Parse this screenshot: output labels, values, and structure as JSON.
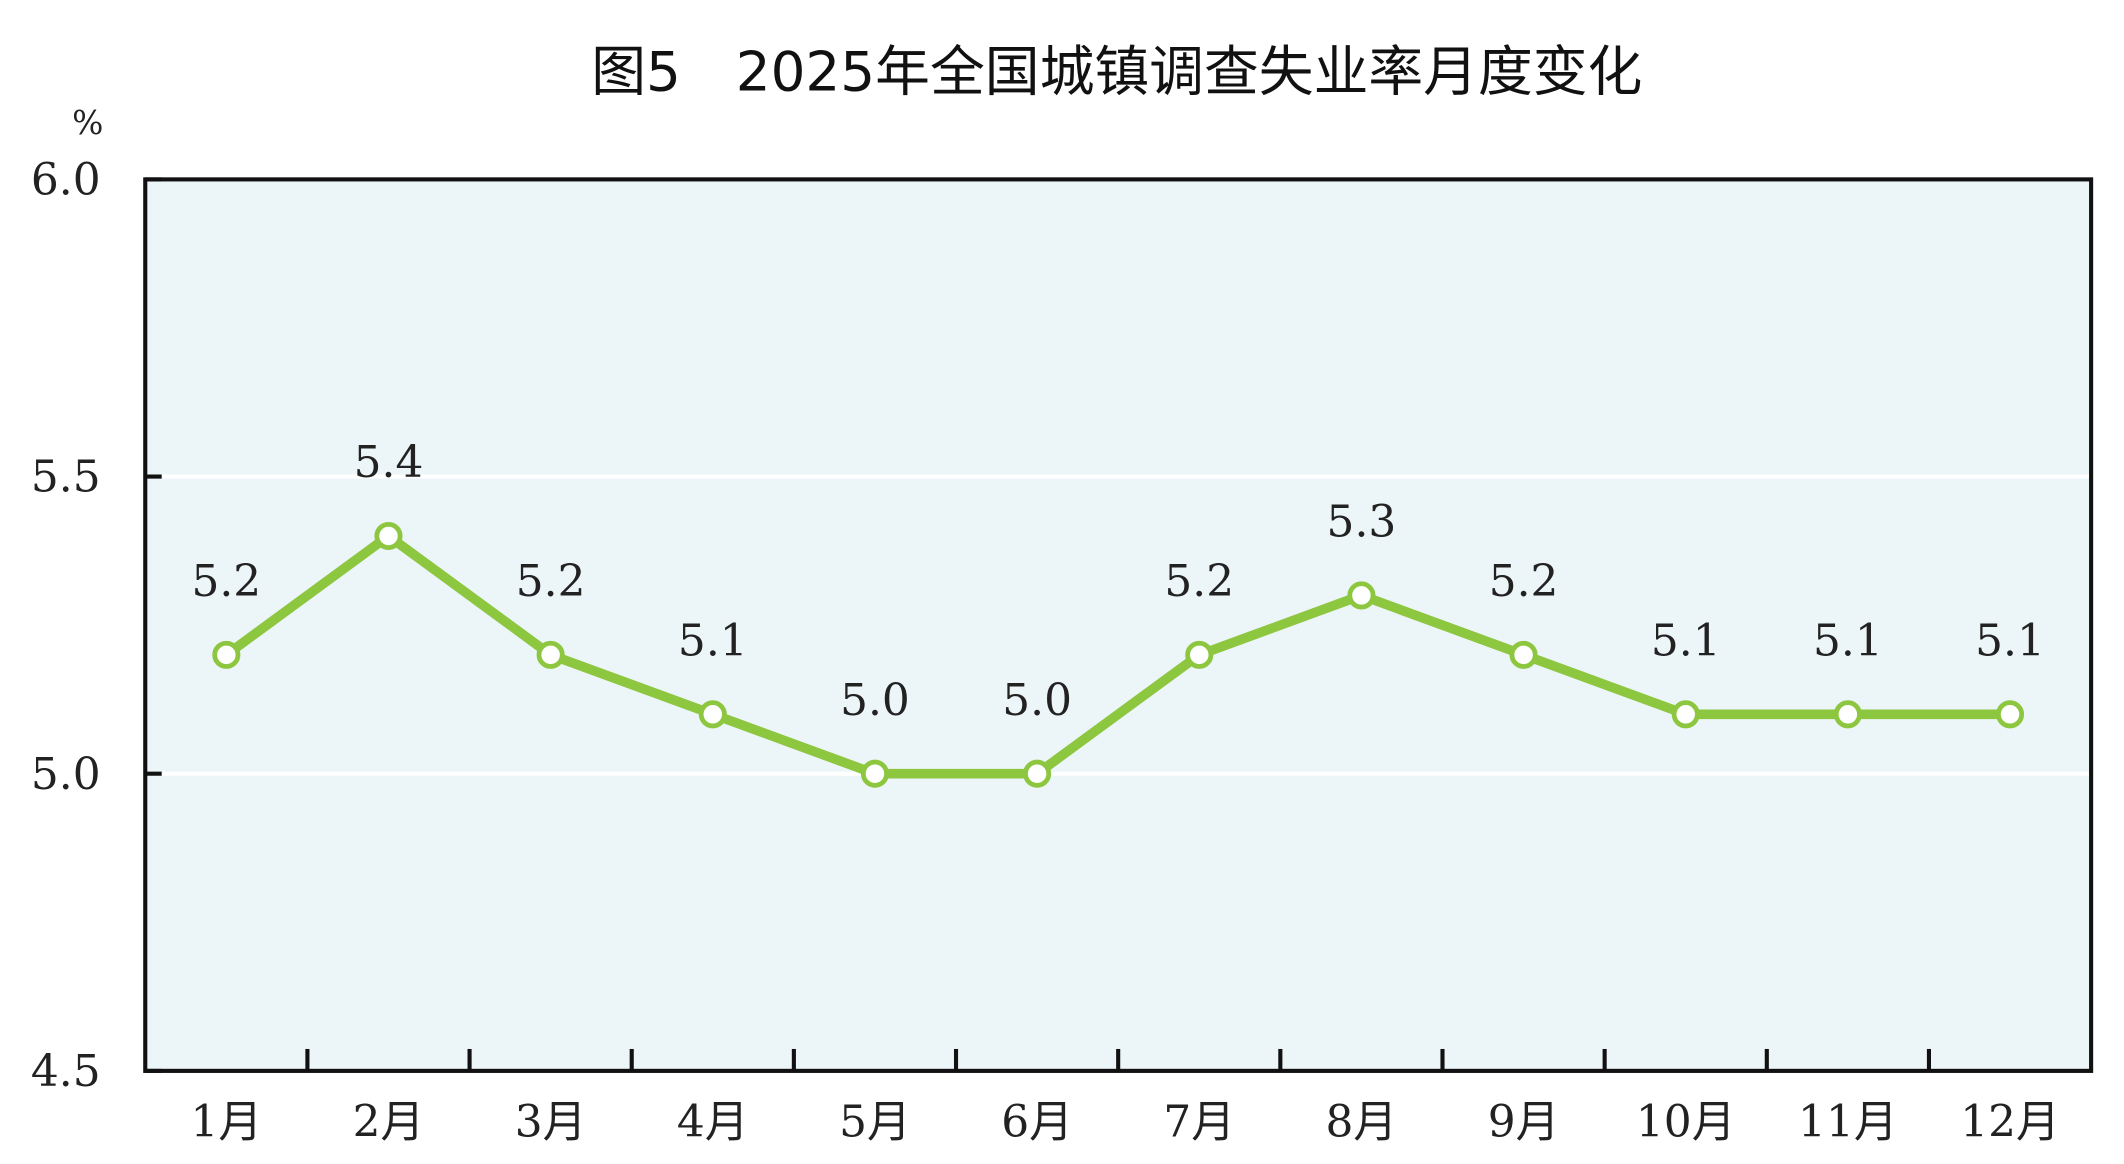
{
  "chart_data": {
    "type": "line",
    "title": "图5　2025年全国城镇调查失业率月度变化",
    "ylabel": "%",
    "xlabel": "",
    "categories": [
      "1月",
      "2月",
      "3月",
      "4月",
      "5月",
      "6月",
      "7月",
      "8月",
      "9月",
      "10月",
      "11月",
      "12月"
    ],
    "values": [
      5.2,
      5.4,
      5.2,
      5.1,
      5.0,
      5.0,
      5.2,
      5.3,
      5.2,
      5.1,
      5.1,
      5.1
    ],
    "data_labels": [
      "5.2",
      "5.4",
      "5.2",
      "5.1",
      "5.0",
      "5.0",
      "5.2",
      "5.3",
      "5.2",
      "5.1",
      "5.1",
      "5.1"
    ],
    "ylim": [
      4.5,
      6.0
    ],
    "yticks": [
      4.5,
      5.0,
      5.5,
      6.0
    ],
    "ytick_labels": [
      "4.5",
      "5.0",
      "5.5",
      "6.0"
    ],
    "grid": true,
    "legend": "none",
    "colors": {
      "line": "#8dc63f",
      "plot_background": "#ecf5f8",
      "grid": "#ffffff",
      "axis": "#111111"
    }
  }
}
